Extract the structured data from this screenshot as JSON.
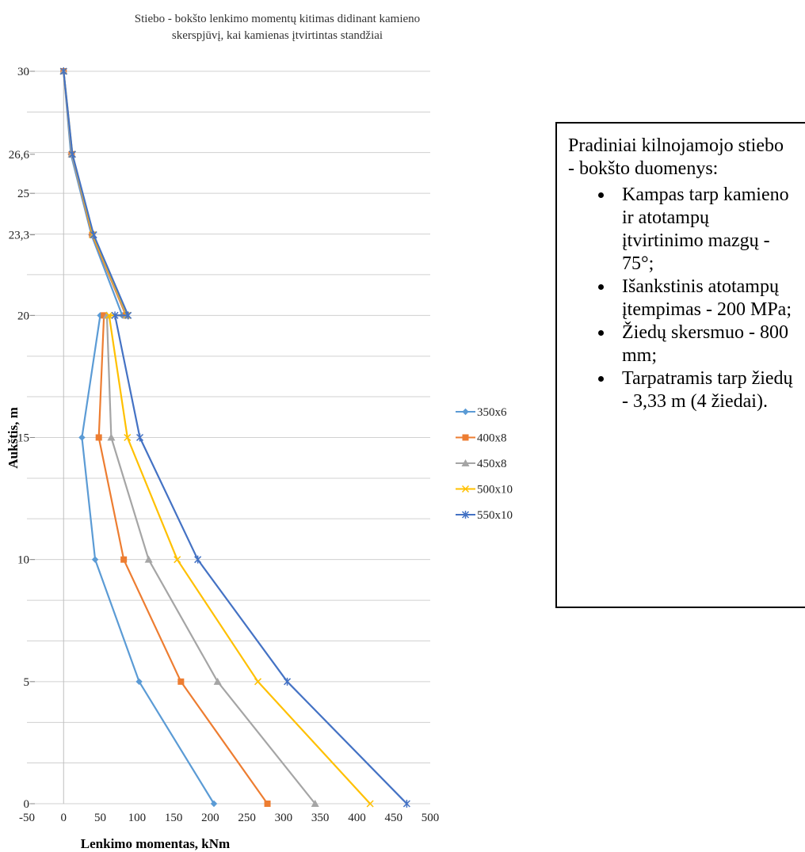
{
  "chart_data": {
    "type": "line",
    "title_lines": [
      "Stiebo - bokšto lenkimo momentų kitimas didinant kamieno",
      "skerspjūvį, kai kamienas įtvirtintas standžiai"
    ],
    "xlabel": "Lenkimo momentas, kNm",
    "ylabel": "Aukštis, m",
    "xlim": [
      -50,
      500
    ],
    "ylim": [
      0,
      30
    ],
    "x_ticks": [
      "-50",
      "0",
      "50",
      "100",
      "150",
      "200",
      "250",
      "300",
      "350",
      "400",
      "450",
      "500"
    ],
    "y_ticks": [
      {
        "value": 0,
        "label": "0"
      },
      {
        "value": 5,
        "label": "5"
      },
      {
        "value": 10,
        "label": "10"
      },
      {
        "value": 15,
        "label": "15"
      },
      {
        "value": 20,
        "label": "20"
      },
      {
        "value": 23.3,
        "label": "23,3"
      },
      {
        "value": 25,
        "label": "25"
      },
      {
        "value": 26.6,
        "label": "26,6"
      },
      {
        "value": 30,
        "label": "30"
      }
    ],
    "gridlines_y": [
      0,
      1.67,
      3.33,
      5,
      6.67,
      8.33,
      10,
      11.67,
      13.33,
      15,
      16.67,
      18.33,
      20,
      21.67,
      23.33,
      25,
      26.67,
      28.33,
      30
    ],
    "legend_position": "right",
    "series": [
      {
        "name": "350x6",
        "color": "#5B9BD5",
        "marker": "diamond",
        "points": [
          [
            0,
            30
          ],
          [
            10,
            26.6
          ],
          [
            38,
            23.3
          ],
          [
            80,
            20
          ],
          [
            50,
            20
          ],
          [
            25,
            15
          ],
          [
            43,
            10
          ],
          [
            103,
            5
          ],
          [
            205,
            0
          ]
        ]
      },
      {
        "name": "400x8",
        "color": "#ED7D31",
        "marker": "square",
        "points": [
          [
            0,
            30
          ],
          [
            11,
            26.6
          ],
          [
            39,
            23.3
          ],
          [
            85,
            20
          ],
          [
            55,
            20
          ],
          [
            48,
            15
          ],
          [
            82,
            10
          ],
          [
            160,
            5
          ],
          [
            278,
            0
          ]
        ]
      },
      {
        "name": "450x8",
        "color": "#A5A5A5",
        "marker": "triangle",
        "points": [
          [
            0,
            30
          ],
          [
            11,
            26.6
          ],
          [
            40,
            23.3
          ],
          [
            86,
            20
          ],
          [
            59,
            20
          ],
          [
            65,
            15
          ],
          [
            116,
            10
          ],
          [
            210,
            5
          ],
          [
            343,
            0
          ]
        ]
      },
      {
        "name": "500x10",
        "color": "#FFC000",
        "marker": "x",
        "points": [
          [
            0,
            30
          ],
          [
            12,
            26.6
          ],
          [
            40,
            23.3
          ],
          [
            87,
            20
          ],
          [
            62,
            20
          ],
          [
            87,
            15
          ],
          [
            155,
            10
          ],
          [
            265,
            5
          ],
          [
            418,
            0
          ]
        ]
      },
      {
        "name": "550x10",
        "color": "#4472C4",
        "marker": "star",
        "points": [
          [
            0,
            30
          ],
          [
            12,
            26.6
          ],
          [
            41,
            23.3
          ],
          [
            88,
            20
          ],
          [
            70,
            20
          ],
          [
            104,
            15
          ],
          [
            183,
            10
          ],
          [
            305,
            5
          ],
          [
            468,
            0
          ]
        ]
      }
    ]
  },
  "info_box": {
    "heading": "Pradiniai kilnojamojo stiebo - bokšto duomenys:",
    "items": [
      "Kampas tarp kamieno ir atotampų įtvirtinimo mazgų - 75°;",
      "Išankstinis atotampų įtempimas - 200 MPa;",
      "Žiedų skersmuo - 800 mm;",
      "Tarpatramis tarp žiedų - 3,33 m (4 žiedai)."
    ]
  }
}
